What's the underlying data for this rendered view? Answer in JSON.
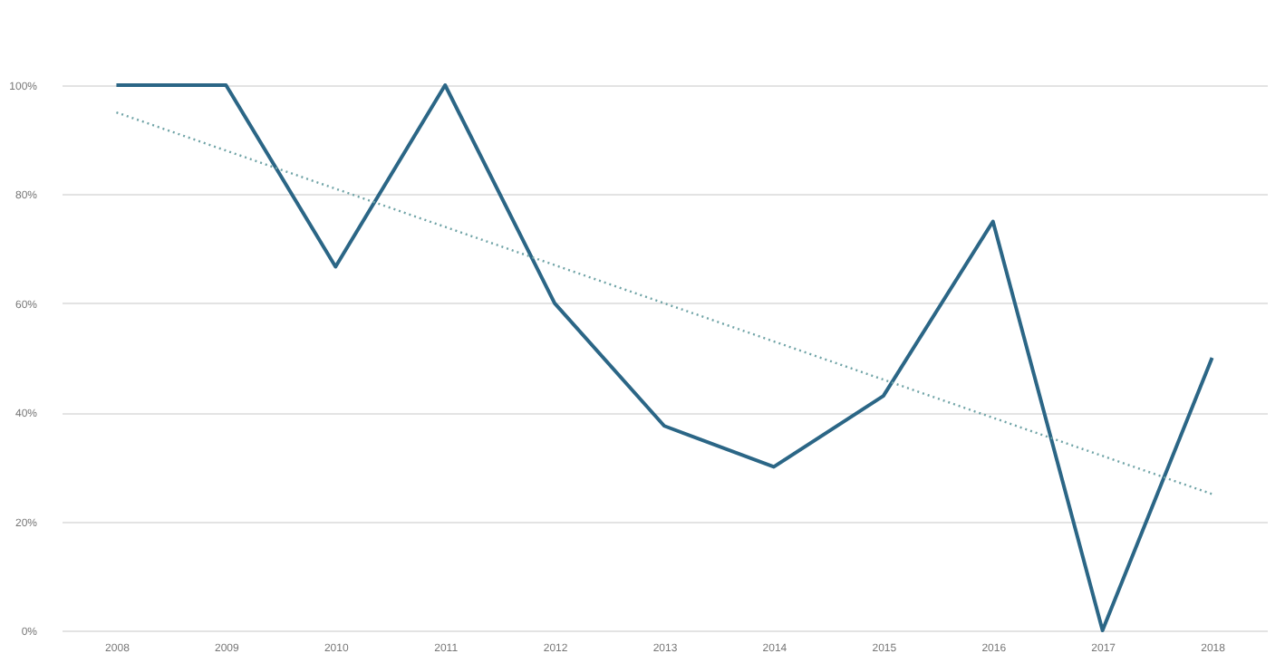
{
  "chart_data": {
    "type": "line",
    "x": [
      2008,
      2009,
      2010,
      2011,
      2012,
      2013,
      2014,
      2015,
      2016,
      2017,
      2018
    ],
    "series": [
      {
        "color": "#2b6686",
        "values": [
          100,
          100,
          66.7,
          100,
          60,
          37.5,
          30,
          43,
          75,
          0,
          50
        ]
      },
      {
        "type": "line",
        "color": "#6fa3a6",
        "line_style": "dotted",
        "x": [
          2008,
          2018
        ],
        "values": [
          95,
          25
        ]
      }
    ],
    "xlim": [
      2007.5,
      2018.5
    ],
    "xticks": [
      2008,
      2009,
      2010,
      2011,
      2012,
      2013,
      2014,
      2015,
      2016,
      2017,
      2018
    ],
    "ylim": [
      0,
      100
    ],
    "yticks": [
      {
        "value": 0,
        "label": "0%"
      },
      {
        "value": 20,
        "label": "20%"
      },
      {
        "value": 40,
        "label": "40%"
      },
      {
        "value": 60,
        "label": "60%"
      },
      {
        "value": 80,
        "label": "80%"
      },
      {
        "value": 100,
        "label": "100%"
      }
    ],
    "grid": "y",
    "marker": "none",
    "line_style": "solid"
  }
}
